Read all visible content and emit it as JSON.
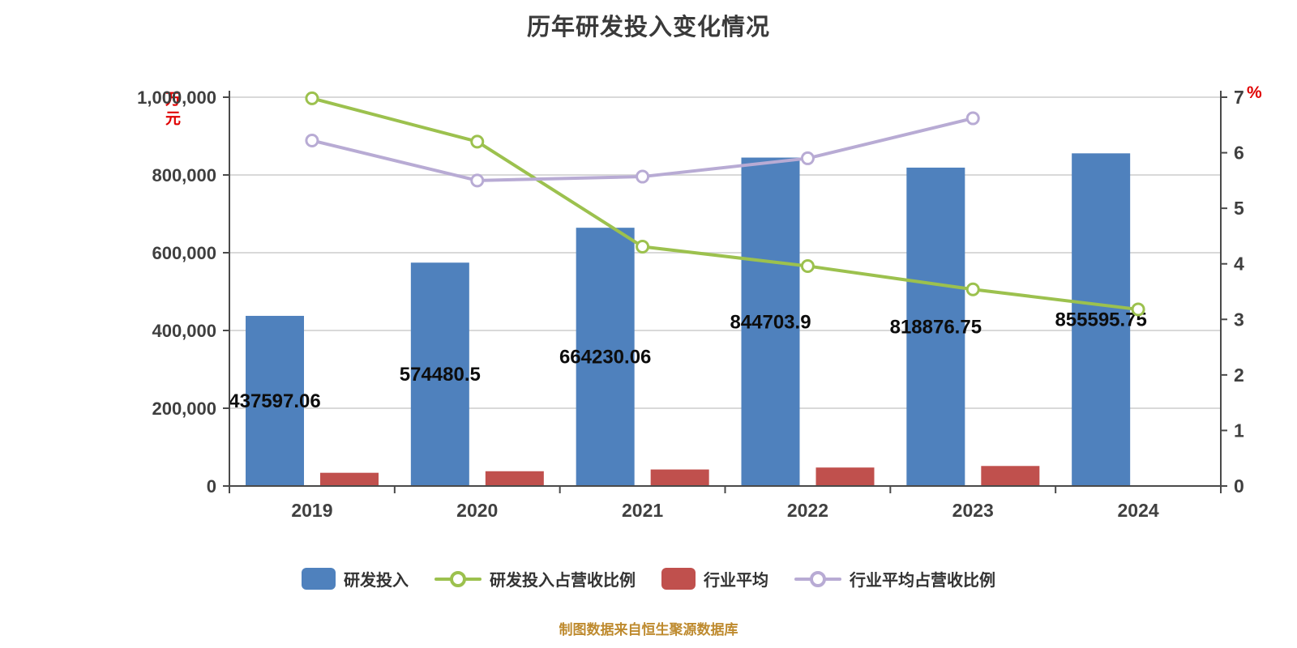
{
  "chart_data": {
    "type": "combo-bar-line",
    "title": "历年研发投入变化情况",
    "categories": [
      "2019",
      "2020",
      "2021",
      "2022",
      "2023",
      "2024"
    ],
    "series": [
      {
        "name": "研发投入",
        "type": "bar",
        "axis": "left",
        "color": "#4F81BD",
        "values": [
          437597.06,
          574480.5,
          664230.06,
          844703.9,
          818876.75,
          855595.75
        ],
        "labels": [
          "437597.06",
          "574480.5",
          "664230.06",
          "844703.9",
          "818876.75",
          "855595.75"
        ]
      },
      {
        "name": "研发投入占营收比例",
        "type": "line",
        "axis": "right",
        "color": "#9CC14E",
        "values": [
          6.98,
          6.2,
          4.31,
          3.96,
          3.54,
          3.18
        ]
      },
      {
        "name": "行业平均",
        "type": "bar",
        "axis": "left",
        "color": "#C0504D",
        "values": [
          34000,
          38000,
          42500,
          47500,
          51500,
          null
        ]
      },
      {
        "name": "行业平均占营收比例",
        "type": "line",
        "axis": "right",
        "color": "#B8ABD4",
        "values": [
          6.22,
          5.5,
          5.57,
          5.9,
          6.62,
          null
        ]
      }
    ],
    "left_axis": {
      "min": 0,
      "max": 1000000,
      "step": 200000,
      "unit": "万元",
      "tick_labels": [
        "0",
        "200,000",
        "400,000",
        "600,000",
        "800,000",
        "1,000,000"
      ]
    },
    "right_axis": {
      "min": 0,
      "max": 7,
      "step": 1,
      "unit": "%",
      "tick_labels": [
        "0",
        "1",
        "2",
        "3",
        "4",
        "5",
        "6",
        "7"
      ]
    },
    "grid": true,
    "legend_position": "bottom"
  },
  "colors": {
    "grid_line": "#D9D9D9",
    "axis_line": "#4A4A4A",
    "unit_label": "#E00000",
    "source_note": "#BE8A2E",
    "marker_fill": "#FFFFFF"
  },
  "footer": {
    "source_note": "制图数据来自恒生聚源数据库"
  }
}
